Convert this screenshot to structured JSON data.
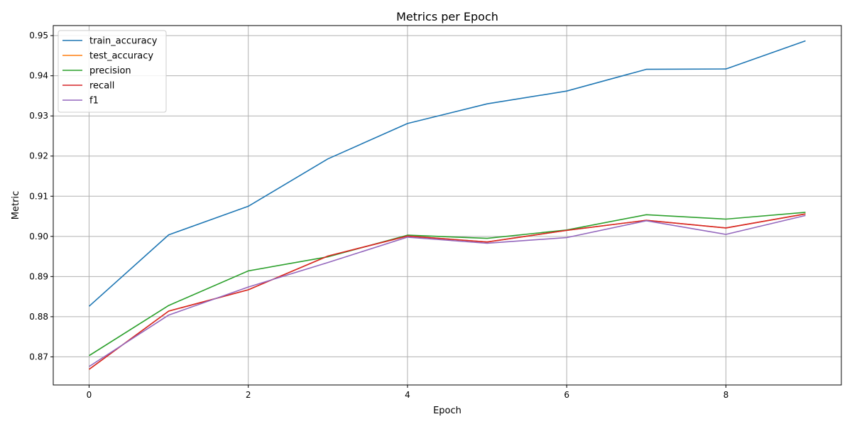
{
  "chart_data": {
    "type": "line",
    "title": "Metrics per Epoch",
    "xlabel": "Epoch",
    "ylabel": "Metric",
    "xlim": [
      -0.45,
      9.45
    ],
    "ylim": [
      0.863,
      0.9525
    ],
    "x_ticks": [
      0,
      2,
      4,
      6,
      8
    ],
    "y_ticks": [
      0.87,
      0.88,
      0.89,
      0.9,
      0.91,
      0.92,
      0.93,
      0.94,
      0.95
    ],
    "x_tick_labels": [
      "0",
      "2",
      "4",
      "6",
      "8"
    ],
    "y_tick_labels": [
      "0.87",
      "0.88",
      "0.89",
      "0.90",
      "0.91",
      "0.92",
      "0.93",
      "0.94",
      "0.95"
    ],
    "grid": true,
    "legend_position": "top-left",
    "x": [
      0,
      1,
      2,
      3,
      4,
      5,
      6,
      7,
      8,
      9
    ],
    "series": [
      {
        "name": "train_accuracy",
        "color": "#1f77b4",
        "values": [
          0.8826,
          0.9004,
          0.9075,
          0.9193,
          0.9281,
          0.933,
          0.9362,
          0.9416,
          0.9417,
          0.9487
        ]
      },
      {
        "name": "test_accuracy",
        "color": "#ff7f0e",
        "values": [
          0.8669,
          0.8814,
          0.8867,
          0.8951,
          0.9001,
          0.8986,
          0.9015,
          0.904,
          0.9021,
          0.9056
        ]
      },
      {
        "name": "precision",
        "color": "#2ca02c",
        "values": [
          0.8703,
          0.8828,
          0.8914,
          0.8949,
          0.9003,
          0.8995,
          0.9016,
          0.9054,
          0.9043,
          0.906
        ]
      },
      {
        "name": "recall",
        "color": "#d62728",
        "values": [
          0.8669,
          0.8814,
          0.8867,
          0.8951,
          0.9001,
          0.8986,
          0.9015,
          0.904,
          0.9021,
          0.9056
        ]
      },
      {
        "name": "f1",
        "color": "#9467bd",
        "values": [
          0.8676,
          0.8804,
          0.8874,
          0.8935,
          0.8998,
          0.8983,
          0.8997,
          0.9039,
          0.9005,
          0.9052
        ]
      }
    ]
  }
}
